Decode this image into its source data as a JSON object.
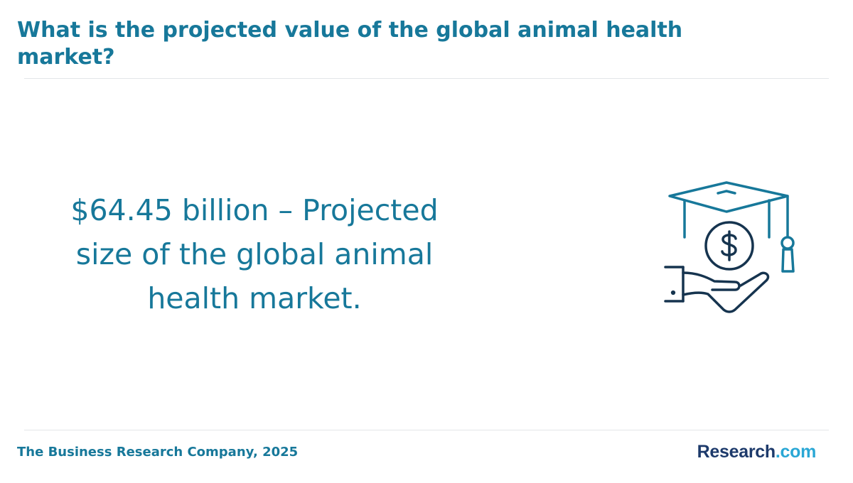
{
  "header": {
    "title": "What is the projected value of the global animal health market?"
  },
  "main": {
    "headline": "$64.45 billion – Projected size of the global animal health market.",
    "illustration_icon": "graduation-cap-coin-hand-icon"
  },
  "footer": {
    "source": "The Business Research Company, 2025",
    "logo": {
      "main": "Research",
      "suffix": ".com"
    }
  },
  "colors": {
    "primary": "#17789a",
    "divider": "#e3e6e8",
    "logo_main": "#1d3a6b",
    "logo_suffix": "#2aa7d5"
  }
}
